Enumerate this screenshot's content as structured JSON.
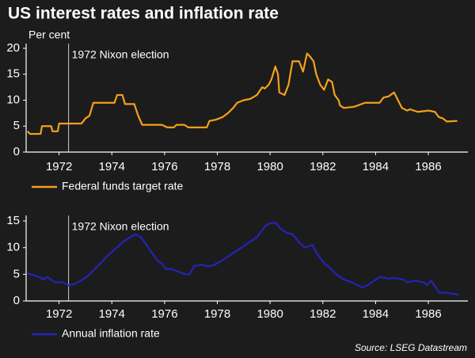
{
  "title": "US interest rates and inflation rate",
  "source": "Source: LSEG Datastream",
  "chart_data": [
    {
      "type": "line",
      "ylabel": "Per cent",
      "annotation": {
        "text": "1972 Nixon election",
        "x": 1972.36
      },
      "xlim": [
        1970.75,
        1987.5
      ],
      "xticks": [
        1972,
        1974,
        1976,
        1978,
        1980,
        1982,
        1984,
        1986
      ],
      "ylim": [
        0,
        20
      ],
      "yticks": [
        0,
        5,
        10,
        15,
        20
      ],
      "series": [
        {
          "name": "Federal funds target rate",
          "color": "#f5a01a",
          "x": [
            1970.8,
            1970.9,
            1971.3,
            1971.35,
            1971.7,
            1971.75,
            1971.95,
            1972.0,
            1972.85,
            1973.0,
            1973.15,
            1973.3,
            1974.1,
            1974.2,
            1974.4,
            1974.5,
            1974.85,
            1975.0,
            1975.15,
            1975.9,
            1976.1,
            1976.35,
            1976.45,
            1976.75,
            1976.9,
            1977.6,
            1977.7,
            1977.95,
            1978.2,
            1978.4,
            1978.6,
            1978.75,
            1979.0,
            1979.25,
            1979.5,
            1979.7,
            1979.8,
            1979.95,
            1980.05,
            1980.2,
            1980.3,
            1980.35,
            1980.55,
            1980.7,
            1980.85,
            1981.1,
            1981.25,
            1981.4,
            1981.5,
            1981.65,
            1981.75,
            1981.9,
            1982.05,
            1982.2,
            1982.35,
            1982.45,
            1982.6,
            1982.65,
            1982.8,
            1983.2,
            1983.6,
            1984.15,
            1984.3,
            1984.5,
            1984.7,
            1984.85,
            1985.0,
            1985.2,
            1985.3,
            1985.6,
            1986.0,
            1986.25,
            1986.4,
            1986.55,
            1986.7,
            1987.1
          ],
          "values": [
            4.0,
            3.5,
            3.5,
            5.0,
            5.0,
            4.0,
            4.0,
            5.5,
            5.5,
            6.5,
            7.0,
            9.5,
            9.5,
            11.0,
            11.0,
            9.25,
            9.25,
            7.0,
            5.25,
            5.25,
            4.75,
            4.75,
            5.25,
            5.25,
            4.75,
            4.75,
            6.0,
            6.25,
            6.75,
            7.5,
            8.5,
            9.5,
            10.0,
            10.25,
            11.0,
            12.5,
            12.25,
            13.0,
            14.0,
            16.5,
            15.0,
            11.5,
            11.0,
            13.0,
            17.5,
            17.5,
            15.5,
            19.0,
            18.5,
            17.5,
            15.0,
            13.0,
            12.0,
            14.0,
            13.5,
            11.0,
            10.0,
            9.0,
            8.5,
            8.75,
            9.5,
            9.5,
            10.5,
            10.75,
            11.5,
            10.0,
            8.5,
            8.0,
            8.25,
            7.75,
            8.0,
            7.75,
            6.75,
            6.5,
            5.9,
            6.0
          ]
        }
      ]
    },
    {
      "type": "line",
      "annotation": {
        "text": "1972 Nixon election",
        "x": 1972.36
      },
      "xlim": [
        1970.75,
        1987.5
      ],
      "xticks": [
        1972,
        1974,
        1976,
        1978,
        1980,
        1982,
        1984,
        1986
      ],
      "ylim": [
        0,
        15
      ],
      "yticks": [
        0,
        5,
        10,
        15
      ],
      "series": [
        {
          "name": "Annual inflation rate",
          "color": "#2424b8",
          "x": [
            1970.8,
            1971.25,
            1971.4,
            1971.55,
            1971.85,
            1972.15,
            1972.36,
            1972.6,
            1972.75,
            1973.05,
            1973.35,
            1973.65,
            1973.95,
            1974.19,
            1974.4,
            1974.7,
            1974.91,
            1975.09,
            1975.24,
            1975.45,
            1975.6,
            1975.75,
            1975.9,
            1976.05,
            1976.29,
            1976.5,
            1976.8,
            1976.95,
            1977.11,
            1977.41,
            1977.62,
            1977.86,
            1978.15,
            1978.45,
            1978.76,
            1979.06,
            1979.36,
            1979.51,
            1979.66,
            1979.81,
            1979.96,
            1980.2,
            1980.41,
            1980.62,
            1980.86,
            1981.1,
            1981.31,
            1981.61,
            1981.76,
            1982.06,
            1982.21,
            1982.51,
            1982.81,
            1983.11,
            1983.5,
            1983.71,
            1984.01,
            1984.16,
            1984.46,
            1984.76,
            1985.06,
            1985.21,
            1985.51,
            1985.81,
            1985.96,
            1986.11,
            1986.41,
            1986.71,
            1987.02,
            1987.17
          ],
          "values": [
            5.2,
            4.5,
            4.0,
            4.5,
            3.5,
            3.5,
            2.9,
            3.2,
            3.6,
            4.5,
            6.0,
            7.5,
            9.0,
            10.0,
            11.0,
            12.0,
            12.5,
            12.0,
            11.0,
            9.5,
            8.5,
            7.5,
            7.0,
            6.0,
            6.0,
            5.5,
            5.0,
            5.0,
            6.5,
            6.8,
            6.5,
            6.7,
            7.5,
            8.5,
            9.5,
            10.5,
            11.5,
            12.0,
            13.0,
            14.0,
            14.5,
            14.7,
            13.5,
            12.8,
            12.5,
            11.0,
            10.0,
            10.5,
            9.0,
            7.0,
            6.5,
            5.0,
            4.0,
            3.5,
            2.5,
            3.0,
            4.0,
            4.5,
            4.2,
            4.3,
            4.0,
            3.5,
            3.8,
            3.5,
            3.0,
            3.8,
            1.6,
            1.5,
            1.3,
            1.1
          ]
        }
      ]
    }
  ]
}
